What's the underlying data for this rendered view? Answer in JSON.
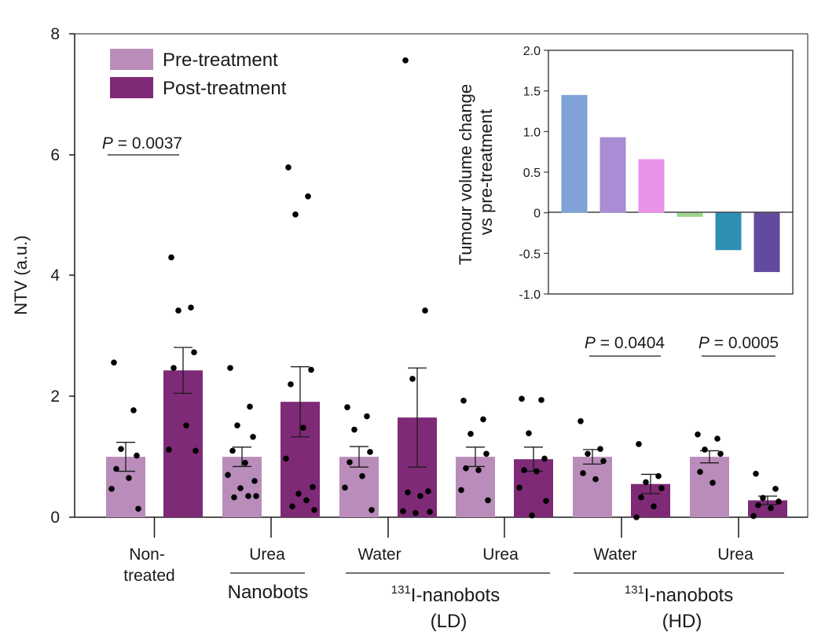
{
  "chart_data": [
    {
      "type": "bar",
      "ylabel": "NTV (a.u.)",
      "ylim": [
        0,
        8
      ],
      "yticks": [
        "0",
        "2",
        "4",
        "6",
        "8"
      ],
      "legend": {
        "placement": "top-left",
        "entries": [
          {
            "label": "Pre-treatment",
            "color": "#b98cba"
          },
          {
            "label": "Post-treatment",
            "color": "#7e2a77"
          }
        ]
      },
      "categories": [
        {
          "label": "Non-\ntreated",
          "pre": 1.0,
          "post": 2.43,
          "pre_sem": 0.24,
          "post_sem": 0.38
        },
        {
          "label": "Urea",
          "pre": 1.0,
          "post": 1.91,
          "pre_sem": 0.16,
          "post_sem": 0.58
        },
        {
          "label": "Water",
          "pre": 1.0,
          "post": 1.65,
          "pre_sem": 0.17,
          "post_sem": 0.82
        },
        {
          "label": "Urea",
          "pre": 1.0,
          "post": 0.96,
          "pre_sem": 0.16,
          "post_sem": 0.2
        },
        {
          "label": "Water",
          "pre": 1.0,
          "post": 0.55,
          "pre_sem": 0.12,
          "post_sem": 0.16
        },
        {
          "label": "Urea",
          "pre": 1.0,
          "post": 0.28,
          "pre_sem": 0.1,
          "post_sem": 0.07
        }
      ],
      "points": [
        {
          "pre": [
            2.56,
            1.77,
            1.13,
            1.02,
            0.8,
            0.65,
            0.47,
            0.14
          ],
          "post": [
            4.3,
            3.47,
            3.42,
            2.73,
            2.47,
            1.52,
            1.12,
            1.1
          ]
        },
        {
          "pre": [
            2.47,
            1.83,
            1.52,
            1.33,
            1.1,
            0.9,
            0.7,
            0.6,
            0.48,
            0.35,
            0.33,
            0.35
          ],
          "post": [
            5.79,
            5.31,
            5.01,
            2.44,
            2.2,
            1.48,
            0.97,
            0.5,
            0.39,
            0.28,
            0.18,
            0.12
          ]
        },
        {
          "pre": [
            1.82,
            1.67,
            1.45,
            1.08,
            0.91,
            0.68,
            0.49,
            0.12
          ],
          "post": [
            7.56,
            3.42,
            2.29,
            0.43,
            0.41,
            0.35,
            0.1,
            0.09,
            0.07
          ]
        },
        {
          "pre": [
            1.93,
            1.62,
            1.38,
            1.05,
            0.81,
            0.78,
            0.45,
            0.28
          ],
          "post": [
            1.96,
            1.94,
            1.39,
            0.97,
            0.78,
            0.76,
            0.49,
            0.27,
            0.03
          ]
        },
        {
          "pre": [
            1.59,
            1.13,
            1.05,
            0.93,
            0.73,
            0.63
          ],
          "post": [
            1.21,
            0.68,
            0.58,
            0.48,
            0.33,
            0.18,
            0.0
          ]
        },
        {
          "pre": [
            1.37,
            1.3,
            1.12,
            1.05,
            0.75,
            0.57
          ],
          "post": [
            0.72,
            0.47,
            0.32,
            0.26,
            0.2,
            0.15,
            0.02
          ]
        }
      ],
      "group_labels": [
        {
          "text": "Nanobots",
          "sup": ""
        },
        {
          "text": "I-nanobots",
          "sup": "131",
          "sub": "(LD)"
        },
        {
          "text": "I-nanobots",
          "sup": "131",
          "sub": "(HD)"
        }
      ],
      "annotations": [
        {
          "italic": "P",
          "text": " = 0.0037",
          "between": [
            0,
            0
          ]
        },
        {
          "italic": "P",
          "text": " = 0.0404",
          "between": [
            4,
            4
          ]
        },
        {
          "italic": "P",
          "text": " = 0.0005",
          "between": [
            5,
            5
          ]
        }
      ]
    },
    {
      "type": "bar",
      "placement": "inset top-right",
      "ylabel": "Tumour volume change\nvs pre-treatment",
      "ylim": [
        -1.0,
        2.0
      ],
      "yticks": [
        "2.0",
        "1.5",
        "1.0",
        "0.5",
        "0",
        "-0.5",
        "-1.0"
      ],
      "values": [
        1.45,
        0.93,
        0.66,
        -0.05,
        -0.46,
        -0.73
      ],
      "colors": [
        "#7fa3d6",
        "#a88dd4",
        "#ea91e8",
        "#9fd58f",
        "#2e8fb5",
        "#634a9e"
      ]
    }
  ]
}
